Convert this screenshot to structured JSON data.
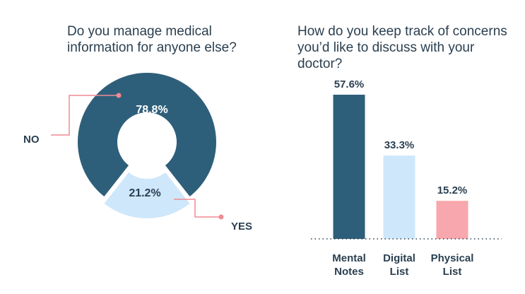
{
  "chart_data": [
    {
      "type": "pie",
      "title": "Do you manage medical information for anyone else?",
      "categories": [
        "NO",
        "YES"
      ],
      "values": [
        78.8,
        21.2
      ],
      "value_labels": [
        "78.8%",
        "21.2%"
      ],
      "colors": [
        "#2e5f7a",
        "#cfe7fa"
      ],
      "callout_color": "#f08a94"
    },
    {
      "type": "bar",
      "title": "How do you keep track of concerns you’d like to discuss with your doctor?",
      "categories": [
        "Mental Notes",
        "Digital List",
        "Physical List"
      ],
      "category_lines": [
        [
          "Mental",
          "Notes"
        ],
        [
          "Digital",
          "List"
        ],
        [
          "Physical",
          "List"
        ]
      ],
      "values": [
        57.6,
        33.3,
        15.2
      ],
      "value_labels": [
        "57.6%",
        "33.3%",
        "15.2%"
      ],
      "colors": [
        "#2e5f7a",
        "#cfe7fa",
        "#f7a7ad"
      ],
      "ylim": [
        0,
        60
      ]
    }
  ]
}
